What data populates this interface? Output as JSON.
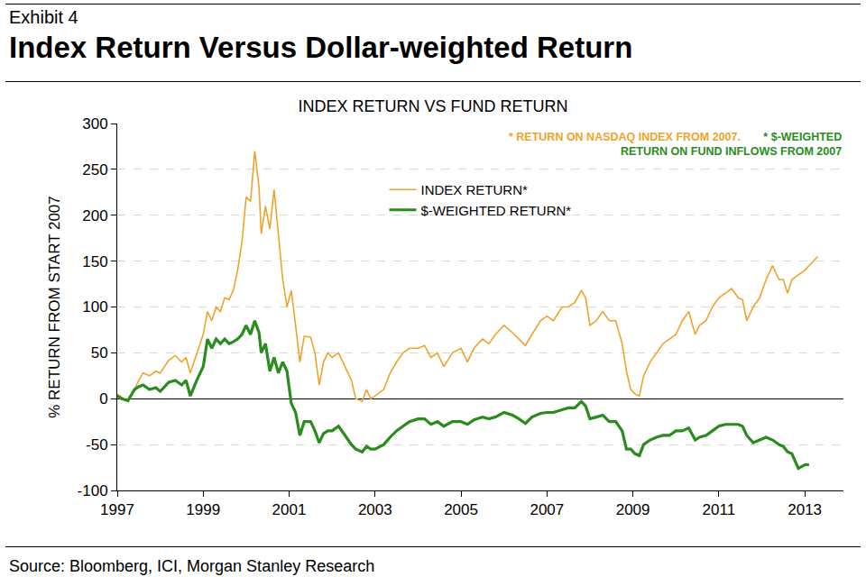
{
  "header": {
    "label": "Exhibit 4",
    "title": "Index Return Versus Dollar-weighted Return"
  },
  "source": "Source: Bloomberg, ICI, Morgan Stanley Research",
  "chart_data": {
    "type": "line",
    "title": "INDEX RETURN VS FUND RETURN",
    "y_label": "% RETURN FROM START 2007",
    "annotations": [
      {
        "text": [
          "* RETURN ON NASDAQ INDEX FROM 2007."
        ],
        "color": "#f0a32a"
      },
      {
        "text": [
          "* $-WEIGHTED",
          "RETURN ON FUND INFLOWS FROM 2007"
        ],
        "color": "#2a8c1e"
      }
    ],
    "x": [
      1997.0,
      1997.1,
      1997.25,
      1997.4,
      1997.5,
      1997.6,
      1997.75,
      1997.9,
      1998.0,
      1998.2,
      1998.35,
      1998.5,
      1998.6,
      1998.7,
      1998.85,
      1999.0,
      1999.1,
      1999.2,
      1999.3,
      1999.4,
      1999.5,
      1999.6,
      1999.7,
      1999.8,
      1999.9,
      2000.0,
      2000.1,
      2000.2,
      2000.3,
      2000.35,
      2000.45,
      2000.55,
      2000.65,
      2000.75,
      2000.85,
      2000.95,
      2001.05,
      2001.15,
      2001.25,
      2001.35,
      2001.5,
      2001.6,
      2001.7,
      2001.8,
      2001.9,
      2002.0,
      2002.15,
      2002.3,
      2002.45,
      2002.55,
      2002.7,
      2002.8,
      2002.9,
      2003.0,
      2003.2,
      2003.35,
      2003.5,
      2003.65,
      2003.8,
      2004.0,
      2004.15,
      2004.3,
      2004.45,
      2004.6,
      2004.8,
      2005.0,
      2005.15,
      2005.3,
      2005.5,
      2005.65,
      2005.8,
      2006.0,
      2006.2,
      2006.35,
      2006.5,
      2006.65,
      2006.85,
      2007.0,
      2007.15,
      2007.35,
      2007.5,
      2007.65,
      2007.8,
      2007.9,
      2008.0,
      2008.15,
      2008.3,
      2008.45,
      2008.6,
      2008.75,
      2008.85,
      2008.95,
      2009.05,
      2009.15,
      2009.25,
      2009.4,
      2009.55,
      2009.7,
      2009.85,
      2010.0,
      2010.15,
      2010.3,
      2010.45,
      2010.55,
      2010.7,
      2010.85,
      2011.0,
      2011.15,
      2011.3,
      2011.45,
      2011.55,
      2011.65,
      2011.8,
      2011.95,
      2012.1,
      2012.25,
      2012.4,
      2012.5,
      2012.6,
      2012.7,
      2012.85,
      2013.0,
      2013.1,
      2013.2,
      2013.3
    ],
    "series": [
      {
        "name": "INDEX RETURN*",
        "color": "#f0a32a",
        "line_style": "thin",
        "values": [
          5,
          2,
          -3,
          10,
          20,
          28,
          25,
          30,
          28,
          42,
          47,
          40,
          45,
          28,
          50,
          70,
          95,
          85,
          100,
          95,
          110,
          108,
          118,
          140,
          170,
          220,
          215,
          270,
          230,
          180,
          210,
          185,
          228,
          175,
          130,
          100,
          118,
          80,
          40,
          68,
          67,
          50,
          15,
          40,
          50,
          45,
          50,
          35,
          20,
          0,
          -3,
          10,
          0,
          3,
          10,
          28,
          40,
          50,
          55,
          55,
          58,
          45,
          50,
          35,
          50,
          55,
          40,
          55,
          65,
          60,
          70,
          80,
          72,
          65,
          58,
          70,
          85,
          90,
          85,
          100,
          100,
          105,
          118,
          110,
          80,
          85,
          95,
          85,
          85,
          60,
          30,
          10,
          5,
          3,
          25,
          40,
          50,
          60,
          65,
          70,
          85,
          95,
          70,
          80,
          85,
          100,
          110,
          115,
          120,
          110,
          108,
          85,
          100,
          110,
          130,
          145,
          130,
          130,
          115,
          130,
          135,
          140,
          145,
          150,
          155
        ]
      },
      {
        "name": "$-WEIGHTED RETURN*",
        "color": "#2a8c1e",
        "line_style": "thick",
        "values": [
          3,
          0,
          -2,
          10,
          13,
          15,
          10,
          12,
          8,
          18,
          20,
          15,
          20,
          3,
          20,
          35,
          65,
          55,
          65,
          60,
          65,
          60,
          62,
          65,
          70,
          80,
          70,
          85,
          72,
          50,
          60,
          30,
          45,
          28,
          40,
          30,
          -5,
          -15,
          -40,
          -25,
          -25,
          -35,
          -48,
          -38,
          -35,
          -35,
          -30,
          -40,
          -50,
          -55,
          -58,
          -52,
          -55,
          -55,
          -50,
          -42,
          -35,
          -30,
          -25,
          -22,
          -22,
          -28,
          -25,
          -30,
          -25,
          -25,
          -28,
          -23,
          -20,
          -22,
          -20,
          -15,
          -18,
          -22,
          -27,
          -20,
          -16,
          -15,
          -15,
          -12,
          -10,
          -10,
          -3,
          -8,
          -22,
          -20,
          -18,
          -25,
          -25,
          -35,
          -55,
          -55,
          -60,
          -62,
          -50,
          -45,
          -42,
          -40,
          -40,
          -35,
          -35,
          -32,
          -45,
          -42,
          -40,
          -35,
          -30,
          -28,
          -28,
          -28,
          -30,
          -40,
          -48,
          -45,
          -42,
          -45,
          -50,
          -52,
          -58,
          -60,
          -76,
          -72,
          -72,
          null,
          null
        ]
      }
    ],
    "xlim": [
      1997,
      2013.9
    ],
    "xticks": [
      1997,
      1999,
      2001,
      2003,
      2005,
      2007,
      2009,
      2011,
      2013
    ],
    "ylim": [
      -100,
      300
    ],
    "yticks": [
      -100,
      -50,
      0,
      50,
      100,
      150,
      200,
      250,
      300
    ],
    "grid": true,
    "legend": "top center"
  }
}
